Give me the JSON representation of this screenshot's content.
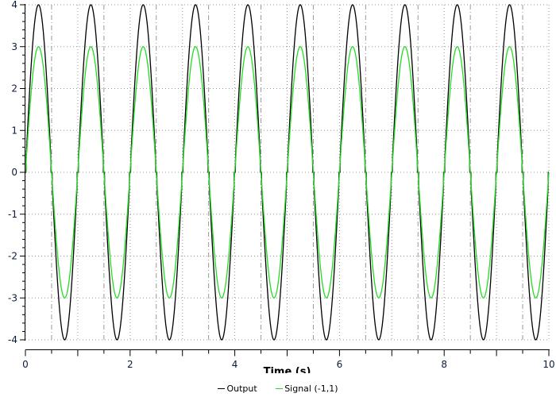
{
  "chart_data": {
    "type": "line",
    "title": "",
    "xlabel": "Time (s)",
    "ylabel": "",
    "xlim": [
      0,
      10
    ],
    "ylim": [
      -4,
      4
    ],
    "x_ticks": [
      0,
      2,
      4,
      6,
      8,
      10
    ],
    "y_ticks": [
      4,
      3,
      2,
      1,
      0,
      -1,
      -2,
      -3,
      -4
    ],
    "grid": true,
    "legend_position": "bottom",
    "series": [
      {
        "name": "Output",
        "color": "#000000",
        "description": "Sine 1 Hz, amplitude 4, with dead zone near zero",
        "frequency_hz": 1,
        "amplitude": 4,
        "dead_zone": 0.35
      },
      {
        "name": "Signal (-1,1)",
        "color": "#22dd22",
        "description": "Sine 1 Hz, amplitude 3",
        "frequency_hz": 1,
        "amplitude": 3,
        "dead_zone": 0
      }
    ]
  },
  "labels": {
    "xlabel": "Time (s)",
    "legend": [
      "Output",
      "Signal (-1,1)"
    ]
  }
}
